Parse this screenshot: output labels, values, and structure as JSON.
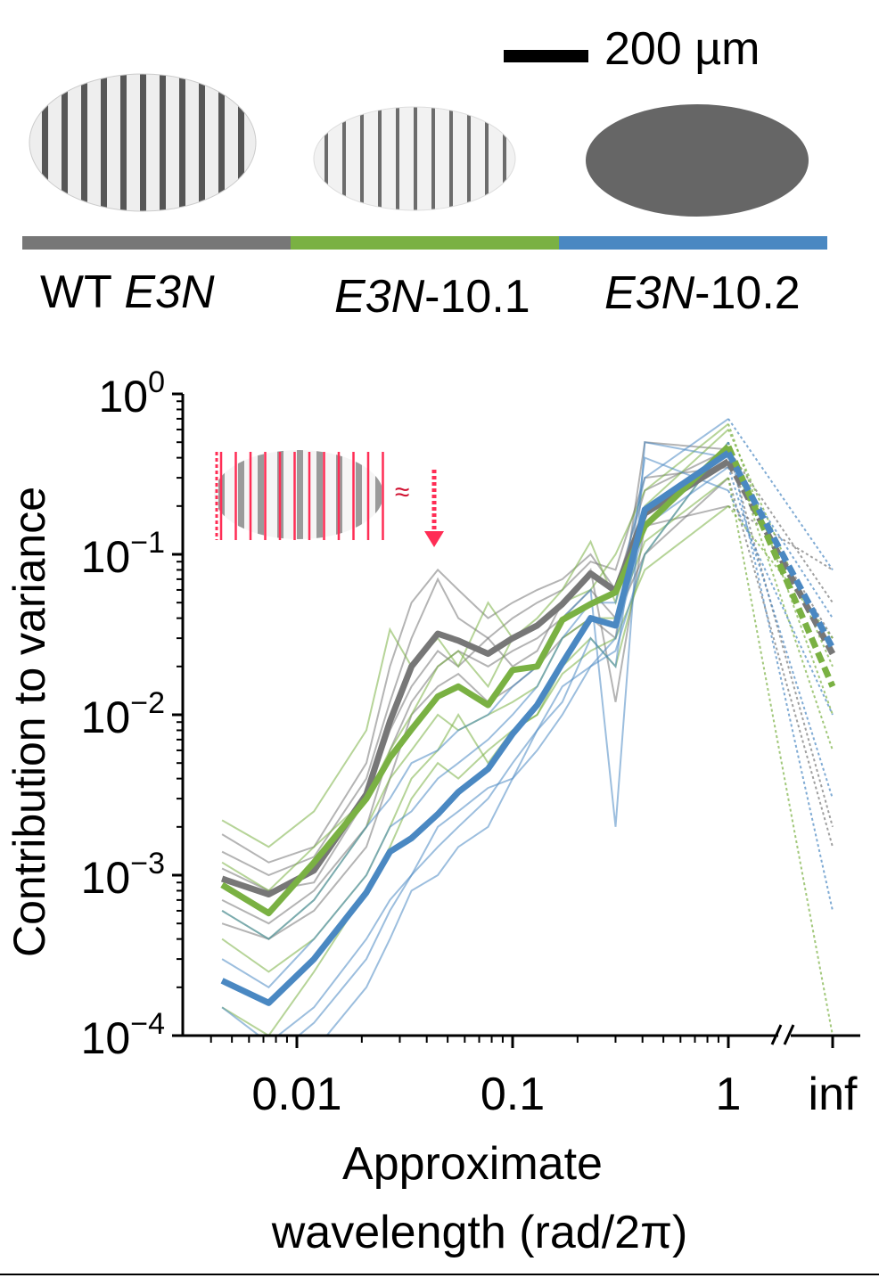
{
  "header": {
    "scale_bar_label": "200 µm",
    "groups": [
      {
        "label_italic": "",
        "label_prefix": "WT ",
        "label_main": "E3N",
        "label_suffix": "",
        "color": "#777777"
      },
      {
        "label_prefix": "",
        "label_main": "E3N",
        "label_suffix": "-10.1",
        "color": "#7ab143"
      },
      {
        "label_prefix": "",
        "label_main": "E3N",
        "label_suffix": "-10.2",
        "color": "#4a88c2"
      }
    ]
  },
  "inset": {
    "approx_symbol": "≈",
    "color": "#ff2d55"
  },
  "chart_data": {
    "type": "line",
    "title": "",
    "xlabel_line1": "Approximate",
    "xlabel_line2": "wavelength (rad/2π)",
    "ylabel": "Contribution to variance",
    "xscale": "log",
    "yscale": "log",
    "xlim": [
      0.004,
      1.0
    ],
    "ylim": [
      0.0001,
      1
    ],
    "x_break_after": 1.0,
    "x": [
      0.0045,
      0.0074,
      0.012,
      0.021,
      0.027,
      0.034,
      0.045,
      0.056,
      0.077,
      0.1,
      0.13,
      0.17,
      0.23,
      0.3,
      0.41,
      1.0,
      "inf"
    ],
    "x_ticks": [
      {
        "value": 0.01,
        "label": "0.01"
      },
      {
        "value": 0.1,
        "label": "0.1"
      },
      {
        "value": 1,
        "label": "1"
      },
      {
        "value": "inf",
        "label": "inf"
      }
    ],
    "y_ticks": [
      {
        "value": 1,
        "base": "10",
        "exp": "0"
      },
      {
        "value": 0.1,
        "base": "10",
        "exp": "−1"
      },
      {
        "value": 0.01,
        "base": "10",
        "exp": "−2"
      },
      {
        "value": 0.001,
        "base": "10",
        "exp": "−3"
      },
      {
        "value": 0.0001,
        "base": "10",
        "exp": "−4"
      }
    ],
    "series": [
      {
        "name": "WT E3N",
        "color": "#777777",
        "mean": [
          0.00095,
          0.00076,
          0.00107,
          0.0032,
          0.0091,
          0.02,
          0.032,
          0.029,
          0.024,
          0.03,
          0.036,
          0.049,
          0.076,
          0.059,
          0.18,
          0.38,
          0.024
        ],
        "individuals": [
          [
            0.0018,
            0.0012,
            0.0015,
            0.005,
            0.02,
            0.05,
            0.08,
            0.06,
            0.04,
            0.05,
            0.06,
            0.07,
            0.1,
            0.06,
            0.25,
            0.45,
            0.05
          ],
          [
            0.0014,
            0.001,
            0.0013,
            0.004,
            0.012,
            0.03,
            0.07,
            0.04,
            0.03,
            0.04,
            0.05,
            0.06,
            0.09,
            0.08,
            0.3,
            0.35,
            0.03
          ],
          [
            0.0007,
            0.0005,
            0.0008,
            0.002,
            0.006,
            0.012,
            0.02,
            0.025,
            0.02,
            0.025,
            0.03,
            0.04,
            0.06,
            0.04,
            0.1,
            0.3,
            0.0015
          ],
          [
            0.0011,
            0.0008,
            0.0009,
            0.003,
            0.008,
            0.015,
            0.025,
            0.02,
            0.03,
            0.02,
            0.025,
            0.05,
            0.08,
            0.012,
            0.15,
            0.2,
            0.08
          ],
          [
            0.0005,
            0.0004,
            0.0006,
            0.0015,
            0.004,
            0.01,
            0.015,
            0.018,
            0.012,
            0.015,
            0.02,
            0.03,
            0.04,
            0.03,
            0.5,
            0.45,
            0.002
          ]
        ]
      },
      {
        "name": "E3N-10.1",
        "color": "#7ab143",
        "mean": [
          0.00087,
          0.00058,
          0.0012,
          0.003,
          0.0054,
          0.0081,
          0.013,
          0.015,
          0.0115,
          0.019,
          0.02,
          0.039,
          0.049,
          0.058,
          0.15,
          0.47,
          0.015
        ],
        "individuals": [
          [
            0.0022,
            0.0015,
            0.0025,
            0.008,
            0.034,
            0.02,
            0.03,
            0.02,
            0.05,
            0.03,
            0.04,
            0.06,
            0.12,
            0.05,
            0.2,
            0.6,
            0.02
          ],
          [
            0.0012,
            0.0008,
            0.0015,
            0.003,
            0.006,
            0.01,
            0.02,
            0.025,
            0.015,
            0.03,
            0.035,
            0.05,
            0.06,
            0.1,
            0.25,
            0.65,
            0.01
          ],
          [
            0.0004,
            0.00025,
            0.0004,
            0.001,
            0.002,
            0.004,
            0.006,
            0.01,
            0.005,
            0.008,
            0.01,
            0.02,
            0.03,
            0.02,
            0.1,
            0.5,
            0.006
          ],
          [
            0.0006,
            0.0004,
            0.0007,
            0.002,
            0.004,
            0.006,
            0.01,
            0.008,
            0.01,
            0.012,
            0.015,
            0.03,
            0.04,
            0.04,
            0.12,
            0.3,
            0.0001
          ],
          [
            0.00015,
            0.0001,
            0.00025,
            0.0008,
            0.0015,
            0.003,
            0.005,
            0.004,
            0.006,
            0.008,
            0.01,
            0.018,
            0.025,
            0.03,
            0.08,
            0.2,
            0.03
          ]
        ]
      },
      {
        "name": "E3N-10.2",
        "color": "#4a88c2",
        "mean": [
          0.00022,
          0.00016,
          0.0003,
          0.00078,
          0.0014,
          0.0017,
          0.0024,
          0.0033,
          0.0046,
          0.0076,
          0.0115,
          0.021,
          0.04,
          0.036,
          0.19,
          0.43,
          0.026
        ],
        "individuals": [
          [
            0.0006,
            0.0004,
            0.0007,
            0.002,
            0.003,
            0.005,
            0.006,
            0.008,
            0.01,
            0.015,
            0.02,
            0.04,
            0.06,
            0.002,
            0.5,
            0.4,
            0.04
          ],
          [
            0.0003,
            0.0002,
            0.0004,
            0.001,
            0.002,
            0.0025,
            0.004,
            0.005,
            0.007,
            0.01,
            0.015,
            0.03,
            0.05,
            0.05,
            0.3,
            0.7,
            0.08
          ],
          [
            0.0001,
            7e-05,
            0.00012,
            0.0003,
            0.0006,
            0.001,
            0.0015,
            0.002,
            0.003,
            0.005,
            0.008,
            0.015,
            0.02,
            0.03,
            0.15,
            0.35,
            0.003
          ],
          [
            5e-05,
            3e-05,
            8e-05,
            0.0002,
            0.0004,
            0.0008,
            0.001,
            0.0015,
            0.002,
            0.004,
            0.006,
            0.01,
            0.02,
            0.025,
            0.1,
            0.5,
            0.0006
          ],
          [
            0.00015,
            9e-05,
            0.00015,
            0.0004,
            0.0007,
            0.001,
            0.002,
            0.0025,
            0.0035,
            0.004,
            0.008,
            0.012,
            0.03,
            0.02,
            0.4,
            0.25,
            0.01
          ]
        ]
      }
    ]
  }
}
